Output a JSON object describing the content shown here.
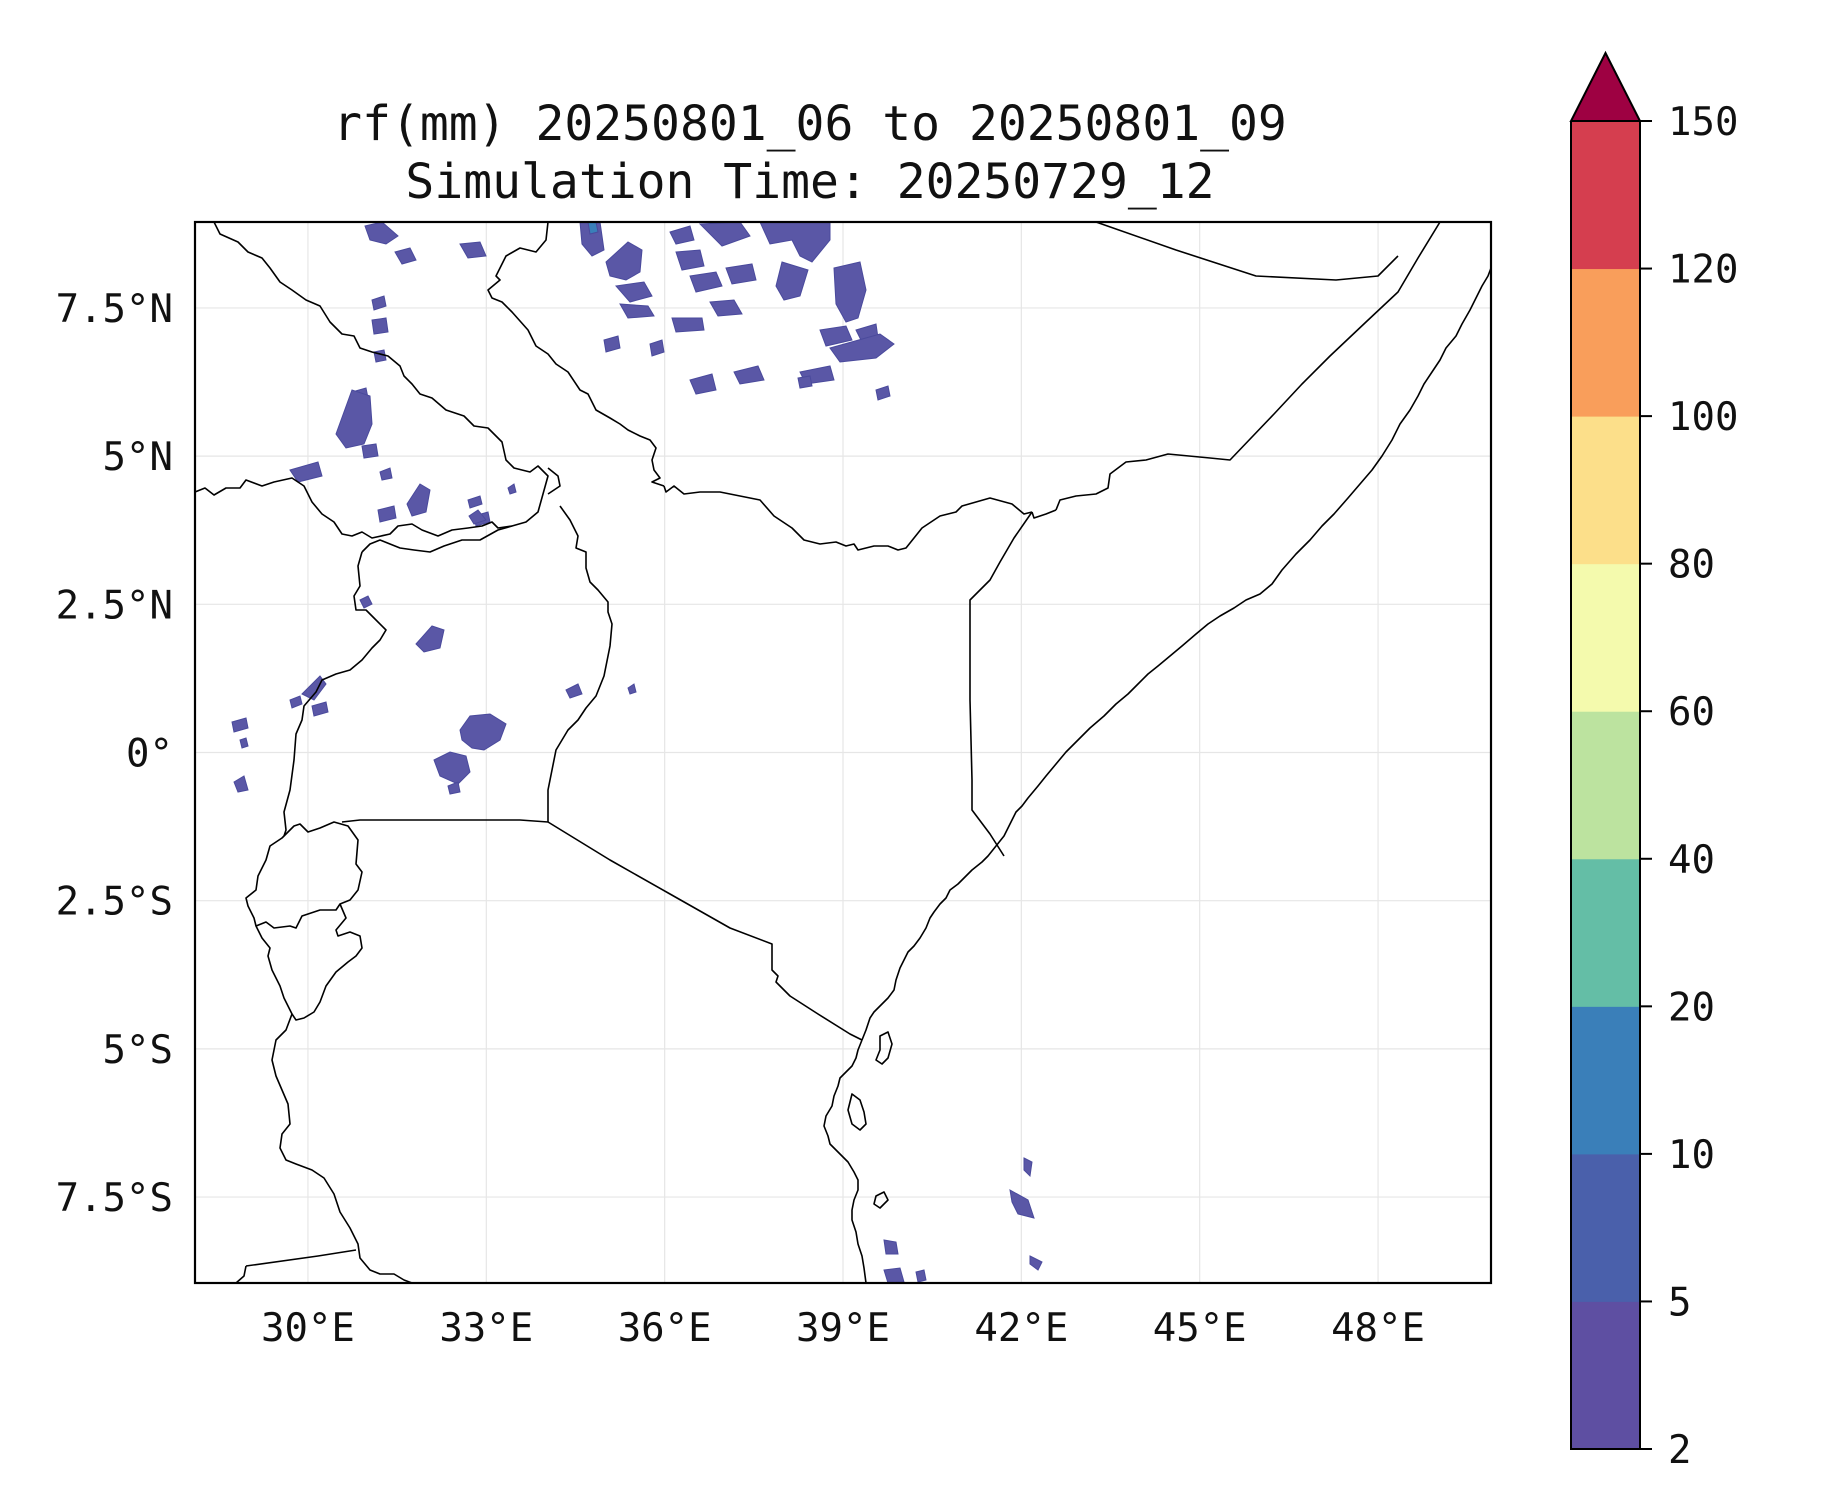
{
  "title": {
    "line1": "rf(mm) 20250801_06 to 20250801_09",
    "line2": "Simulation Time: 20250729_12"
  },
  "map": {
    "extent": {
      "lon": [
        28.1,
        49.9
      ],
      "lat": [
        -8.95,
        8.95
      ]
    },
    "gridlines": true,
    "x_ticks": [
      {
        "value": 30,
        "label": "30°E"
      },
      {
        "value": 33,
        "label": "33°E"
      },
      {
        "value": 36,
        "label": "36°E"
      },
      {
        "value": 39,
        "label": "39°E"
      },
      {
        "value": 42,
        "label": "42°E"
      },
      {
        "value": 45,
        "label": "45°E"
      },
      {
        "value": 48,
        "label": "48°E"
      }
    ],
    "y_ticks": [
      {
        "value": 7.5,
        "label": "7.5°N"
      },
      {
        "value": 5,
        "label": "5°N"
      },
      {
        "value": 2.5,
        "label": "2.5°N"
      },
      {
        "value": 0,
        "label": "0°"
      },
      {
        "value": -2.5,
        "label": "2.5°S"
      },
      {
        "value": -5,
        "label": "5°S"
      },
      {
        "value": -7.5,
        "label": "7.5°S"
      }
    ]
  },
  "colorbar": {
    "levels": [
      2,
      5,
      10,
      20,
      40,
      60,
      80,
      100,
      120,
      150
    ],
    "labels": [
      "2",
      "5",
      "10",
      "20",
      "40",
      "60",
      "80",
      "100",
      "120",
      "150"
    ],
    "colors": [
      "#5e4fa2",
      "#4a60ab",
      "#3a7fb9",
      "#64bea6",
      "#bce39f",
      "#f4faad",
      "#fcdf8a",
      "#f99e5b",
      "#d53e4f"
    ],
    "extend_color": "#9e0142",
    "extend": "max"
  }
}
